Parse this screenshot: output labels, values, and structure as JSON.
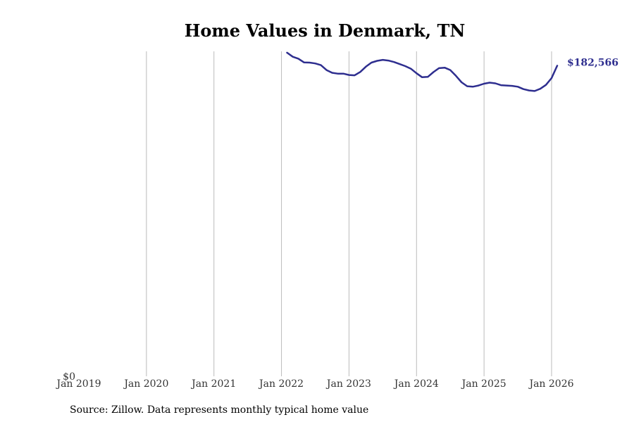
{
  "chart_data": {
    "type": "line",
    "title": "Home Values in Denmark, TN",
    "xlabel": "",
    "ylabel": "",
    "x_ticks": [
      "Jan 2019",
      "Jan 2020",
      "Jan 2021",
      "Jan 2022",
      "Jan 2023",
      "Jan 2024",
      "Jan 2025",
      "Jan 2026"
    ],
    "y_ticks": [
      {
        "value": 0,
        "label": "$0"
      }
    ],
    "xlim": [
      2019.0,
      2026.92
    ],
    "ylim": [
      0,
      191000
    ],
    "grid": "vertical",
    "series": [
      {
        "name": "Typical home value",
        "color": "#2e2e8f",
        "x": [
          2022.083,
          2022.167,
          2022.25,
          2022.333,
          2022.417,
          2022.5,
          2022.583,
          2022.667,
          2022.75,
          2022.833,
          2022.917,
          2023.0,
          2023.083,
          2023.167,
          2023.25,
          2023.333,
          2023.417,
          2023.5,
          2023.583,
          2023.667,
          2023.75,
          2023.833,
          2023.917,
          2024.0,
          2024.083,
          2024.167,
          2024.25,
          2024.333,
          2024.417,
          2024.5,
          2024.583,
          2024.667,
          2024.75,
          2024.833,
          2024.917,
          2025.0,
          2025.083,
          2025.167,
          2025.25,
          2025.333,
          2025.417,
          2025.5,
          2025.583,
          2025.667,
          2025.75,
          2025.833,
          2025.917,
          2026.0,
          2026.083
        ],
        "values": [
          190200,
          187800,
          186700,
          184500,
          184400,
          183900,
          182900,
          180000,
          178400,
          177900,
          177900,
          177100,
          176900,
          178900,
          182000,
          184400,
          185400,
          186000,
          185600,
          184700,
          183500,
          182300,
          180800,
          178100,
          175800,
          176000,
          178800,
          181100,
          181400,
          180000,
          176600,
          172800,
          170500,
          170200,
          170900,
          172000,
          172600,
          172200,
          171100,
          170900,
          170700,
          170200,
          168800,
          168000,
          167700,
          169000,
          171300,
          175300,
          182566
        ]
      }
    ],
    "end_label": "$182,566",
    "source": "Source: Zillow. Data represents monthly typical home value"
  }
}
